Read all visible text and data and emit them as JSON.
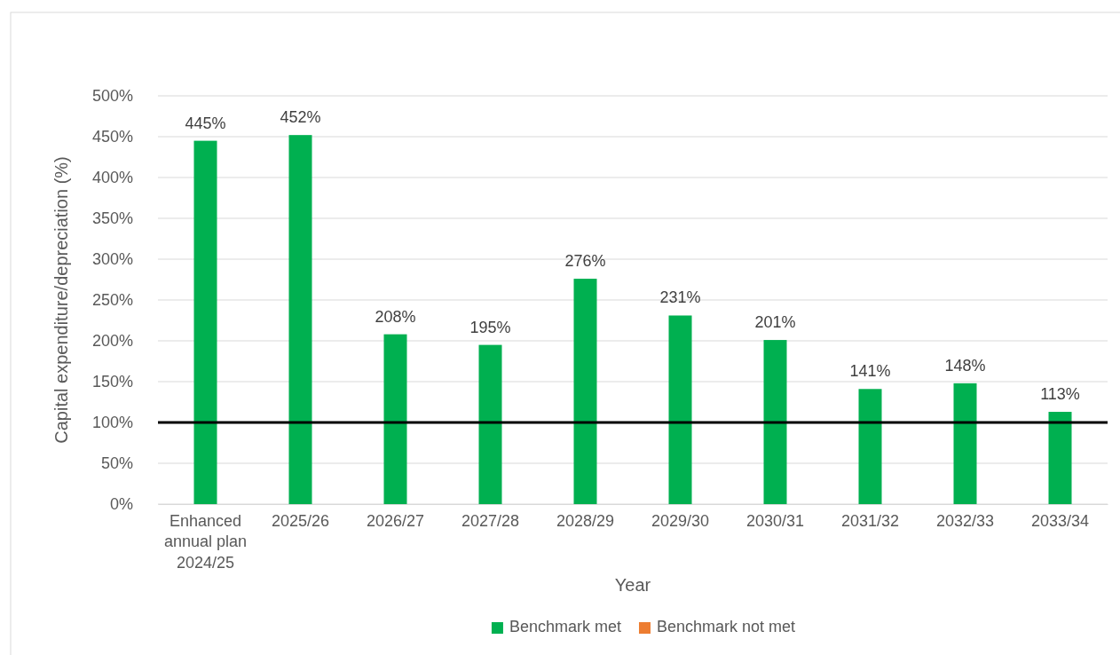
{
  "chart_data": {
    "type": "bar",
    "xlabel": "Year",
    "ylabel": "Capital expenditure/depreciation (%)",
    "categories": [
      "Enhanced annual plan 2024/25",
      "2025/26",
      "2026/27",
      "2027/28",
      "2028/29",
      "2029/30",
      "2030/31",
      "2031/32",
      "2032/33",
      "2033/34"
    ],
    "series": [
      {
        "name": "Benchmark met",
        "color": "#00b050",
        "values": [
          445,
          452,
          208,
          195,
          276,
          231,
          201,
          141,
          148,
          113
        ]
      },
      {
        "name": "Benchmark not met",
        "color": "#ed7d31",
        "values": [
          null,
          null,
          null,
          null,
          null,
          null,
          null,
          null,
          null,
          null
        ]
      }
    ],
    "ylim": [
      0,
      500
    ],
    "yticks": [
      {
        "value": 0,
        "label": "0%"
      },
      {
        "value": 50,
        "label": "50%"
      },
      {
        "value": 100,
        "label": "100%"
      },
      {
        "value": 150,
        "label": "150%"
      },
      {
        "value": 200,
        "label": "200%"
      },
      {
        "value": 250,
        "label": "250%"
      },
      {
        "value": 300,
        "label": "300%"
      },
      {
        "value": 350,
        "label": "350%"
      },
      {
        "value": 400,
        "label": "400%"
      },
      {
        "value": 450,
        "label": "450%"
      },
      {
        "value": 500,
        "label": "500%"
      }
    ],
    "value_labels": [
      "445%",
      "452%",
      "208%",
      "195%",
      "276%",
      "231%",
      "201%",
      "141%",
      "148%",
      "113%"
    ],
    "ref_lines": [
      {
        "axis": "y",
        "value": 100,
        "color": "#000000"
      }
    ],
    "grid": "y",
    "legend": "bottom"
  }
}
